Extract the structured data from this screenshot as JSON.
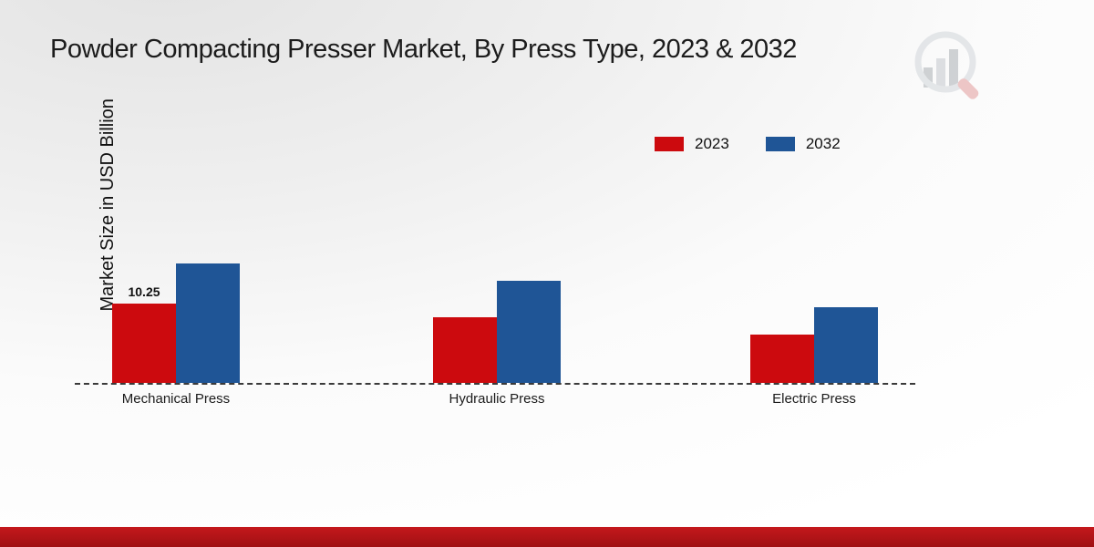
{
  "title": "Powder Compacting Presser Market, By Press Type, 2023 & 2032",
  "ylabel": "Market Size in USD Billion",
  "legend": [
    {
      "label": "2023",
      "color": "#cc0a0e"
    },
    {
      "label": "2032",
      "color": "#1f5596"
    }
  ],
  "chart_data": {
    "type": "bar",
    "title": "Powder Compacting Presser Market, By Press Type, 2023 & 2032",
    "xlabel": "",
    "ylabel": "Market Size in USD Billion",
    "categories": [
      "Mechanical Press",
      "Hydraulic Press",
      "Electric Press"
    ],
    "series": [
      {
        "name": "2023",
        "color": "#cc0a0e",
        "values": [
          10.25,
          8.5,
          6.2
        ]
      },
      {
        "name": "2032",
        "color": "#1f5596",
        "values": [
          15.4,
          13.2,
          9.8
        ]
      }
    ],
    "value_labels": [
      {
        "series_index": 0,
        "category_index": 0,
        "text": "10.25"
      }
    ],
    "ylim": [
      0,
      18
    ],
    "grid": false,
    "legend_position": "top-right",
    "baseline_style": "dashed"
  },
  "icons": {
    "brand_logo": "bar-chart-magnifier-logo"
  },
  "footer": {
    "accent_color": "#b01215"
  }
}
